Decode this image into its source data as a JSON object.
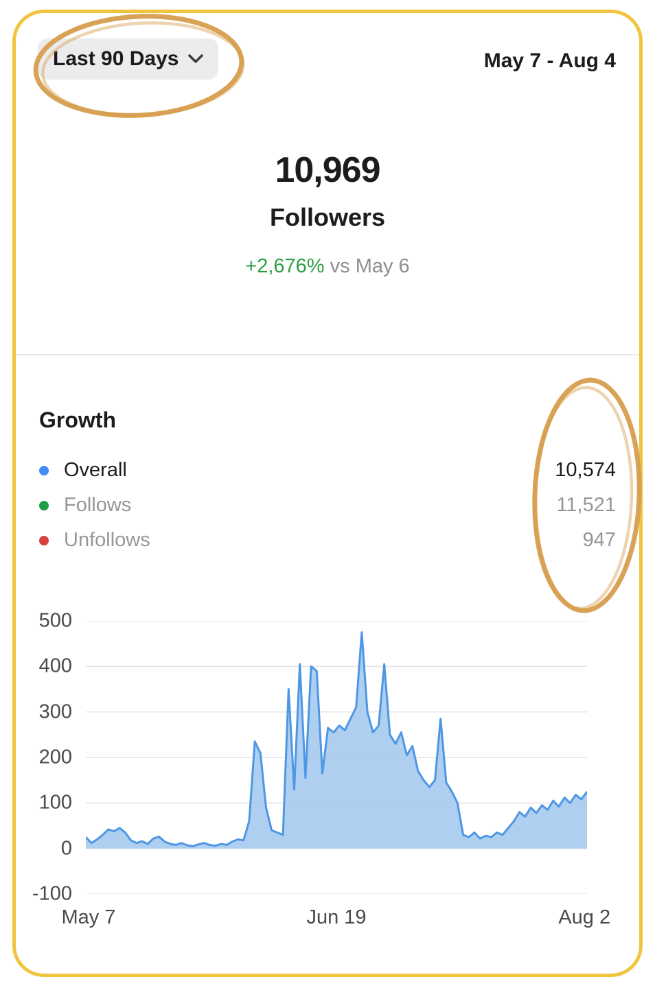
{
  "header": {
    "period_label": "Last 90 Days",
    "date_range": "May 7 - Aug 4"
  },
  "summary": {
    "followers_count": "10,969",
    "followers_label": "Followers",
    "change_percent": "+2,676%",
    "change_comparison": "vs May 6"
  },
  "growth": {
    "title": "Growth",
    "legend": [
      {
        "label": "Overall",
        "value": "10,574",
        "color": "#3F8EF3"
      },
      {
        "label": "Follows",
        "value": "11,521",
        "color": "#1E9E44"
      },
      {
        "label": "Unfollows",
        "value": "947",
        "color": "#D6403A"
      }
    ]
  },
  "chart_data": {
    "type": "area",
    "series_name": "Overall",
    "x_labels": [
      "May 7",
      "Jun 19",
      "Aug 2"
    ],
    "yticks": [
      500,
      400,
      300,
      200,
      100,
      0,
      -100
    ],
    "ylim": [
      -100,
      500
    ],
    "baseline": 0,
    "grid": true,
    "legend_position": "none",
    "values": [
      25,
      12,
      20,
      30,
      42,
      38,
      45,
      35,
      18,
      12,
      16,
      10,
      22,
      26,
      15,
      10,
      8,
      12,
      7,
      5,
      9,
      12,
      8,
      6,
      10,
      8,
      15,
      20,
      18,
      60,
      235,
      210,
      90,
      40,
      35,
      30,
      350,
      130,
      405,
      155,
      400,
      390,
      165,
      265,
      255,
      270,
      260,
      285,
      310,
      475,
      300,
      255,
      270,
      405,
      250,
      230,
      255,
      205,
      225,
      170,
      150,
      135,
      150,
      285,
      145,
      125,
      100,
      30,
      25,
      35,
      22,
      28,
      25,
      35,
      30,
      45,
      60,
      80,
      70,
      90,
      78,
      95,
      85,
      105,
      92,
      112,
      100,
      118,
      108,
      125
    ]
  },
  "colors": {
    "card_border_yellow": "#F0C43F",
    "annotation_orange": "#D79E4E",
    "chart_line_blue": "#4D97E4",
    "chart_fill_blue": "#A8CBEF",
    "positive_green": "#2E9E44",
    "muted_gray": "#8E8E93"
  }
}
